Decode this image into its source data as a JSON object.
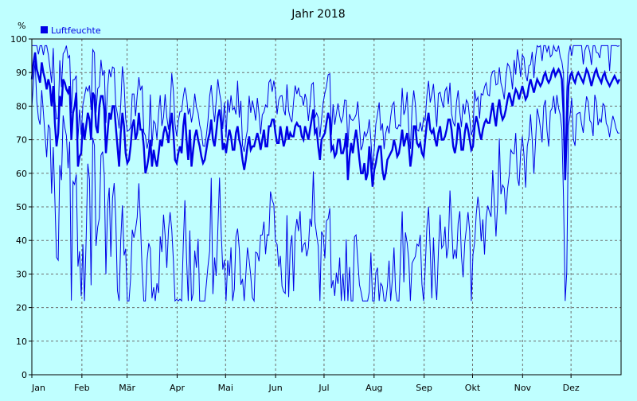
{
  "chart_data": {
    "type": "line",
    "title": "Jahr 2018",
    "ylabel": "%",
    "xlabel": "",
    "ylim": [
      0,
      100
    ],
    "yticks": [
      0,
      10,
      20,
      30,
      40,
      50,
      60,
      70,
      80,
      90,
      100
    ],
    "categories": [
      "Jan",
      "Feb",
      "Mär",
      "Apr",
      "Mai",
      "Jun",
      "Jul",
      "Aug",
      "Sep",
      "Okt",
      "Nov",
      "Dez"
    ],
    "grid": true,
    "legend_position": "top-left",
    "series": [
      {
        "name": "Luftfeuchte",
        "color": "#0000e6",
        "x_unit": "month",
        "daily_mean": [
          88,
          93,
          96,
          91,
          89,
          87,
          93,
          90,
          88,
          85,
          88,
          86,
          80,
          86,
          75,
          68,
          72,
          83,
          80,
          88,
          87,
          85,
          84,
          86,
          70,
          78,
          80,
          84,
          62,
          65,
          66,
          75,
          70,
          74,
          78,
          76,
          70,
          84,
          83,
          74,
          72,
          80,
          83,
          83,
          79,
          66,
          72,
          78,
          76,
          80,
          80,
          74,
          68,
          62,
          72,
          78,
          74,
          66,
          63,
          64,
          68,
          74,
          76,
          70,
          72,
          78,
          73,
          73,
          68,
          60,
          62,
          65,
          70,
          62,
          67,
          64,
          62,
          66,
          70,
          68,
          72,
          74,
          72,
          69,
          74,
          78,
          72,
          64,
          63,
          66,
          68,
          66,
          74,
          78,
          70,
          64,
          73,
          62,
          67,
          71,
          73,
          70,
          68,
          65,
          63,
          64,
          67,
          70,
          72,
          76,
          70,
          68,
          72,
          77,
          79,
          75,
          67,
          69,
          66,
          70,
          73,
          71,
          67,
          67,
          72,
          74,
          70,
          68,
          64,
          61,
          64,
          68,
          71,
          67,
          68,
          68,
          70,
          72,
          70,
          67,
          70,
          73,
          68,
          68,
          74,
          74,
          76,
          76,
          72,
          69,
          69,
          74,
          71,
          68,
          70,
          74,
          70,
          72,
          71,
          71,
          74,
          75,
          74,
          74,
          71,
          70,
          74,
          72,
          70,
          73,
          76,
          79,
          72,
          73,
          68,
          64,
          70,
          71,
          72,
          75,
          78,
          76,
          67,
          68,
          65,
          66,
          70,
          70,
          66,
          66,
          68,
          72,
          58,
          65,
          69,
          66,
          70,
          73,
          69,
          64,
          60,
          60,
          63,
          58,
          60,
          68,
          63,
          56,
          61,
          63,
          66,
          68,
          68,
          61,
          58,
          60,
          64,
          65,
          66,
          67,
          70,
          68,
          65,
          66,
          69,
          73,
          68,
          70,
          72,
          68,
          62,
          66,
          74,
          74,
          69,
          68,
          69,
          66,
          65,
          70,
          75,
          78,
          73,
          72,
          73,
          70,
          68,
          72,
          74,
          70,
          70,
          71,
          73,
          76,
          76,
          73,
          68,
          66,
          69,
          75,
          73,
          67,
          67,
          72,
          75,
          73,
          70,
          67,
          68,
          74,
          77,
          75,
          72,
          70,
          73,
          75,
          76,
          75,
          75,
          78,
          81,
          77,
          74,
          79,
          82,
          78,
          76,
          77,
          79,
          82,
          84,
          82,
          80,
          83,
          85,
          84,
          82,
          84,
          86,
          84,
          82,
          83,
          86,
          88,
          86,
          84,
          86,
          88,
          87,
          86,
          87,
          89,
          90,
          88,
          87,
          88,
          90,
          91,
          89,
          90,
          91,
          90,
          88,
          78,
          58,
          72,
          86,
          89,
          90,
          88,
          87,
          89,
          90,
          89,
          88,
          87,
          89,
          91,
          90,
          88,
          86,
          88,
          90,
          91,
          89,
          88,
          87,
          89,
          90,
          88,
          87,
          86,
          87,
          88,
          89,
          88,
          87,
          88
        ]
      }
    ],
    "band_top": "daily maximum (thin line)",
    "band_bottom": "daily minimum (thin line)"
  }
}
